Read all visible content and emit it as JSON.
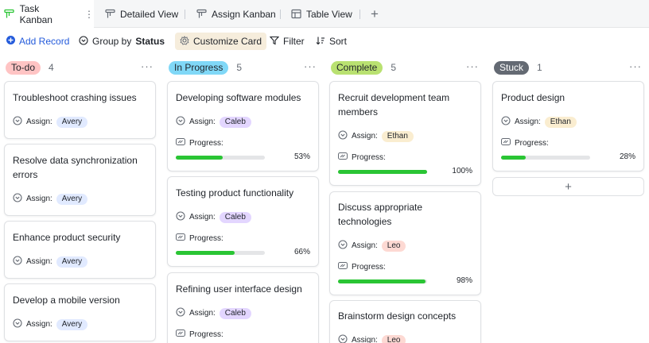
{
  "tabs": [
    {
      "label": "Task Kanban",
      "icon": "kanban-icon",
      "active": true
    },
    {
      "label": "Detailed View",
      "icon": "kanban-icon"
    },
    {
      "label": "Assign Kanban",
      "icon": "kanban-icon"
    },
    {
      "label": "Table View",
      "icon": "table-icon"
    }
  ],
  "toolbar": {
    "add_record": "Add Record",
    "group_by_prefix": "Group by",
    "group_by_value": "Status",
    "customize_card": "Customize Card",
    "filter": "Filter",
    "sort": "Sort"
  },
  "field_labels": {
    "assign": "Assign:",
    "progress": "Progress:"
  },
  "colors": {
    "accent": "#245bdb",
    "progress": "#2ac534"
  },
  "columns": [
    {
      "status": "To-do",
      "count": "4",
      "tag_color": "#ffc4c4",
      "cards": [
        {
          "title": "Troubleshoot crashing issues",
          "assignee": "Avery"
        },
        {
          "title": "Resolve data synchronization errors",
          "assignee": "Avery"
        },
        {
          "title": "Enhance product security",
          "assignee": "Avery"
        },
        {
          "title": "Develop a mobile version",
          "assignee": "Avery"
        }
      ]
    },
    {
      "status": "In Progress",
      "count": "5",
      "tag_color": "#80d8f7",
      "cards": [
        {
          "title": "Developing software modules",
          "assignee": "Caleb",
          "progress": 0.53,
          "progress_label": "53%"
        },
        {
          "title": "Testing product functionality",
          "assignee": "Caleb",
          "progress": 0.66,
          "progress_label": "66%"
        },
        {
          "title": "Refining user interface design",
          "assignee": "Caleb",
          "progress_label_visible": true
        }
      ]
    },
    {
      "status": "Complete",
      "count": "5",
      "tag_color": "#b9e171",
      "cards": [
        {
          "title": "Recruit development team members",
          "assignee": "Ethan",
          "progress": 1.0,
          "progress_label": "100%"
        },
        {
          "title": "Discuss appropriate technologies",
          "assignee": "Leo",
          "progress": 0.98,
          "progress_label": "98%"
        },
        {
          "title": "Brainstorm design concepts",
          "assignee": "Leo"
        }
      ]
    },
    {
      "status": "Stuck",
      "count": "1",
      "tag_color": "#646a73",
      "cards": [
        {
          "title": "Product design",
          "assignee": "Ethan",
          "progress": 0.28,
          "progress_label": "28%"
        }
      ],
      "add_button": "+"
    }
  ]
}
